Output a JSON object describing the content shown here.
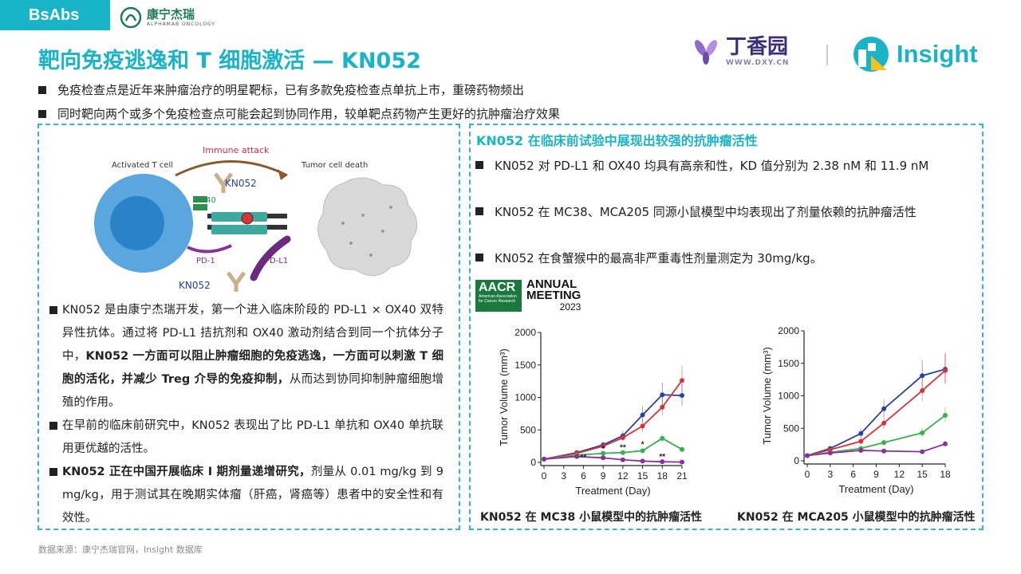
{
  "header": {
    "tag": "BsAbs",
    "brand_cn": "康宁杰瑞",
    "brand_en": "ALPHAMAB ONCOLOGY",
    "title": "靶向免疫逃逸和 T 细胞激活 — KN052",
    "dxy_cn": "丁香园",
    "dxy_url": "WWW.DXY.CN",
    "insight": "Insight"
  },
  "intro_bullets": [
    "免疫检查点是近年来肿瘤治疗的明星靶标，已有多款免疫检查点单抗上市，重磅药物频出",
    "同时靶向两个或多个免疫检查点可能会起到协同作用，较单靶点药物产生更好的抗肿瘤治疗效果"
  ],
  "diagram": {
    "immune_attack": "Immune attack",
    "activated_t_cell": "Activated T cell",
    "tumor_cell_death": "Tumor cell death",
    "kn052": "KN052",
    "ox40": "OX40",
    "pd1": "PD-1",
    "pdl1": "PD-L1"
  },
  "left_paragraphs": {
    "p1_a": "KN052 是由康宁杰瑞开发，第一个进入临床阶段的 PD-L1 × OX40 双特异性抗体。通过将 PD-L1 拮抗剂和 OX40 激动剂结合到同一个抗体分子中，",
    "p1_b": "KN052 一方面可以阻止肿瘤细胞的免疫逃逸，一方面可以刺激 T 细胞的活化，并减少 Treg 介导的免疫抑制，",
    "p1_c": "从而达到协同抑制肿瘤细胞增殖的作用。",
    "p2": "在早前的临床前研究中，KN052 表现出了比 PD-L1 单抗和 OX40 单抗联用更优越的活性。",
    "p3_a": "KN052 正在中国开展临床 I 期剂量递增研究，",
    "p3_b": "剂量从 0.01 mg/kg 到 9 mg/kg，用于测试其在晚期实体瘤（肝癌，肾癌等）患者中的安全性和有效性。"
  },
  "right_panel": {
    "title": "KN052 在临床前试验中展现出较强的抗肿瘤活性",
    "bullets": [
      "KN052 对 PD-L1 和 OX40 均具有高亲和性，KD 值分别为 2.38 nM 和 11.9 nM",
      "KN052 在 MC38、MCA205 同源小鼠模型中均表现出了剂量依赖的抗肿瘤活性",
      "KN052 在食蟹猴中的最高非严重毒性剂量测定为 30mg/kg。"
    ],
    "aacr_logo": "AACR",
    "aacr_sub": "American Association for Cancer Research",
    "meeting_line1": "ANNUAL",
    "meeting_line2": "MEETING",
    "meeting_year": "2023",
    "caption_mc38": "KN052 在 MC38 小鼠模型中的抗肿瘤活性",
    "caption_mca205": "KN052 在 MCA205 小鼠模型中的抗肿瘤活性"
  },
  "chart_data": [
    {
      "type": "line",
      "xlabel": "Treatment (Day)",
      "ylabel": "Tumor Volume (mm³)",
      "x": [
        0,
        3,
        6,
        9,
        12,
        15,
        18,
        21
      ],
      "ylim": [
        0,
        2000
      ],
      "yticks": [
        0,
        500,
        1000,
        1500,
        2000
      ],
      "annotations": [
        "**",
        "*",
        "**",
        "*",
        "**"
      ],
      "series": [
        {
          "color": "#2b3fa6",
          "x": [
            0,
            5,
            9,
            12,
            15,
            18,
            21
          ],
          "values": [
            50,
            150,
            270,
            410,
            730,
            1040,
            1030
          ]
        },
        {
          "color": "#d8323a",
          "x": [
            0,
            5,
            9,
            12,
            15,
            18,
            21
          ],
          "values": [
            50,
            140,
            250,
            380,
            560,
            850,
            1260
          ]
        },
        {
          "color": "#35b24a",
          "x": [
            0,
            5,
            9,
            12,
            15,
            18,
            21
          ],
          "values": [
            50,
            110,
            140,
            150,
            180,
            370,
            200
          ]
        },
        {
          "color": "#8b2f9e",
          "x": [
            0,
            5,
            9,
            12,
            15,
            18,
            21
          ],
          "values": [
            50,
            90,
            70,
            40,
            20,
            10,
            5
          ]
        }
      ]
    },
    {
      "type": "line",
      "xlabel": "Treatment (Day)",
      "ylabel": "Tumor Volume (mm³)",
      "x": [
        0,
        3,
        6,
        9,
        12,
        15,
        18
      ],
      "ylim": [
        0,
        2000
      ],
      "yticks": [
        0,
        500,
        1000,
        1500,
        2000
      ],
      "series": [
        {
          "color": "#2b3fa6",
          "x": [
            0,
            3,
            7,
            10,
            15,
            18
          ],
          "values": [
            80,
            190,
            420,
            800,
            1310,
            1410
          ]
        },
        {
          "color": "#d8323a",
          "x": [
            0,
            3,
            7,
            10,
            15,
            18
          ],
          "values": [
            80,
            170,
            300,
            580,
            1080,
            1390
          ]
        },
        {
          "color": "#35b24a",
          "x": [
            0,
            3,
            7,
            10,
            15,
            18
          ],
          "values": [
            80,
            130,
            190,
            280,
            430,
            700
          ]
        },
        {
          "color": "#8b2f9e",
          "x": [
            0,
            3,
            7,
            10,
            15,
            18
          ],
          "values": [
            80,
            120,
            160,
            150,
            140,
            260
          ]
        }
      ]
    }
  ],
  "source": "数据来源：康宁杰瑞官网，Insight 数据库"
}
